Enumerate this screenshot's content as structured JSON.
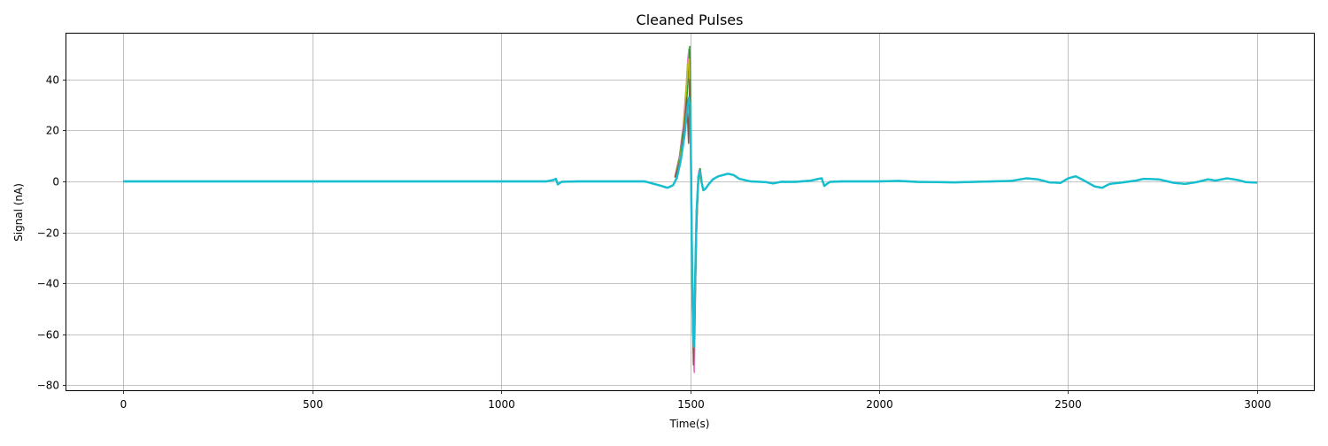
{
  "chart_data": {
    "type": "line",
    "title": "Cleaned Pulses",
    "xlabel": "Time(s)",
    "ylabel": "Signal (nA)",
    "xlim": [
      -150,
      3150
    ],
    "ylim": [
      -82,
      58
    ],
    "xticks": [
      0,
      500,
      1000,
      1500,
      2000,
      2500,
      3000
    ],
    "xtick_labels": [
      "0",
      "500",
      "1000",
      "1500",
      "2000",
      "2500",
      "3000"
    ],
    "yticks": [
      -80,
      -60,
      -40,
      -20,
      0,
      20,
      40
    ],
    "ytick_labels": [
      "−80",
      "−60",
      "−40",
      "−20",
      "0",
      "20",
      "40"
    ],
    "grid": true,
    "legend": "none",
    "colors": [
      "#1f77b4",
      "#ff7f0e",
      "#2ca02c",
      "#d62728",
      "#9467bd",
      "#8c564b",
      "#e377c2",
      "#7f7f7f",
      "#bcbd22",
      "#17becf"
    ],
    "series": [
      {
        "values": [
          [
            0,
            0
          ],
          [
            500,
            0
          ],
          [
            1000,
            0
          ],
          [
            1120,
            0
          ],
          [
            1140,
            0.6
          ],
          [
            1145,
            1.0
          ],
          [
            1150,
            -1.2
          ],
          [
            1160,
            -0.2
          ],
          [
            1200,
            0
          ],
          [
            1300,
            0
          ],
          [
            1380,
            0
          ],
          [
            1400,
            -0.8
          ],
          [
            1420,
            -1.6
          ],
          [
            1440,
            -2.5
          ],
          [
            1455,
            -1.5
          ],
          [
            1465,
            1.5
          ],
          [
            1475,
            8
          ],
          [
            1485,
            18
          ],
          [
            1492,
            28
          ],
          [
            1497,
            33
          ],
          [
            1500,
            30
          ],
          [
            1502,
            10
          ],
          [
            1505,
            -30
          ],
          [
            1508,
            -60
          ],
          [
            1510,
            -65
          ],
          [
            1513,
            -40
          ],
          [
            1517,
            -12
          ],
          [
            1522,
            2
          ],
          [
            1526,
            4
          ],
          [
            1530,
            0
          ],
          [
            1535,
            -3.5
          ],
          [
            1540,
            -3
          ],
          [
            1550,
            -1
          ],
          [
            1560,
            0.8
          ],
          [
            1575,
            2
          ],
          [
            1590,
            2.6
          ],
          [
            1600,
            3
          ],
          [
            1615,
            2.5
          ],
          [
            1630,
            1
          ],
          [
            1660,
            0
          ],
          [
            1700,
            -0.3
          ],
          [
            1720,
            -0.8
          ],
          [
            1740,
            -0.2
          ],
          [
            1780,
            -0.2
          ],
          [
            1820,
            0.3
          ],
          [
            1840,
            1
          ],
          [
            1848,
            1.2
          ],
          [
            1855,
            -1.8
          ],
          [
            1860,
            -1.2
          ],
          [
            1870,
            -0.2
          ],
          [
            1900,
            0
          ],
          [
            2000,
            0
          ],
          [
            2050,
            0.2
          ],
          [
            2100,
            -0.2
          ],
          [
            2200,
            -0.4
          ],
          [
            2300,
            0
          ],
          [
            2350,
            0.2
          ],
          [
            2390,
            1.2
          ],
          [
            2420,
            0.8
          ],
          [
            2450,
            -0.4
          ],
          [
            2480,
            -0.6
          ],
          [
            2500,
            1.2
          ],
          [
            2520,
            2.0
          ],
          [
            2540,
            0.5
          ],
          [
            2570,
            -2.0
          ],
          [
            2590,
            -2.5
          ],
          [
            2610,
            -1.0
          ],
          [
            2640,
            -0.5
          ],
          [
            2680,
            0.3
          ],
          [
            2700,
            1.0
          ],
          [
            2740,
            0.8
          ],
          [
            2780,
            -0.6
          ],
          [
            2810,
            -1.0
          ],
          [
            2840,
            -0.3
          ],
          [
            2870,
            0.8
          ],
          [
            2890,
            0.3
          ],
          [
            2920,
            1.2
          ],
          [
            2950,
            0.5
          ],
          [
            2970,
            -0.3
          ],
          [
            3000,
            -0.5
          ]
        ]
      },
      {
        "values": [
          [
            1460,
            2
          ],
          [
            1472,
            10
          ],
          [
            1482,
            22
          ],
          [
            1490,
            38
          ],
          [
            1494,
            48
          ],
          [
            1497,
            52
          ],
          [
            1500,
            35
          ],
          [
            1503,
            5
          ],
          [
            1506,
            -35
          ],
          [
            1509,
            -70
          ],
          [
            1511,
            -75
          ],
          [
            1514,
            -45
          ],
          [
            1518,
            -10
          ],
          [
            1523,
            4
          ],
          [
            1527,
            5
          ],
          [
            1531,
            0
          ]
        ]
      },
      {
        "values": [
          [
            1460,
            1.5
          ],
          [
            1472,
            9
          ],
          [
            1482,
            20
          ],
          [
            1490,
            30
          ],
          [
            1495,
            40
          ],
          [
            1499,
            53
          ],
          [
            1502,
            20
          ],
          [
            1505,
            -40
          ],
          [
            1509,
            -68
          ],
          [
            1512,
            -60
          ],
          [
            1516,
            -25
          ],
          [
            1521,
            0
          ],
          [
            1526,
            5
          ],
          [
            1531,
            0
          ]
        ]
      },
      {
        "values": [
          [
            1460,
            1.5
          ],
          [
            1472,
            8
          ],
          [
            1482,
            18
          ],
          [
            1489,
            35
          ],
          [
            1493,
            45
          ],
          [
            1497,
            48
          ],
          [
            1500,
            25
          ],
          [
            1504,
            -20
          ],
          [
            1508,
            -55
          ],
          [
            1511,
            -62
          ],
          [
            1515,
            -30
          ],
          [
            1520,
            -5
          ],
          [
            1525,
            3
          ],
          [
            1531,
            0
          ]
        ]
      },
      {
        "values": [
          [
            1460,
            1.5
          ],
          [
            1475,
            9
          ],
          [
            1485,
            22
          ],
          [
            1491,
            33
          ],
          [
            1496,
            15
          ],
          [
            1499,
            40
          ],
          [
            1502,
            12
          ],
          [
            1506,
            -45
          ],
          [
            1509,
            -72
          ],
          [
            1512,
            -55
          ],
          [
            1517,
            -18
          ],
          [
            1522,
            1
          ],
          [
            1527,
            4
          ],
          [
            1531,
            0
          ]
        ]
      }
    ]
  }
}
